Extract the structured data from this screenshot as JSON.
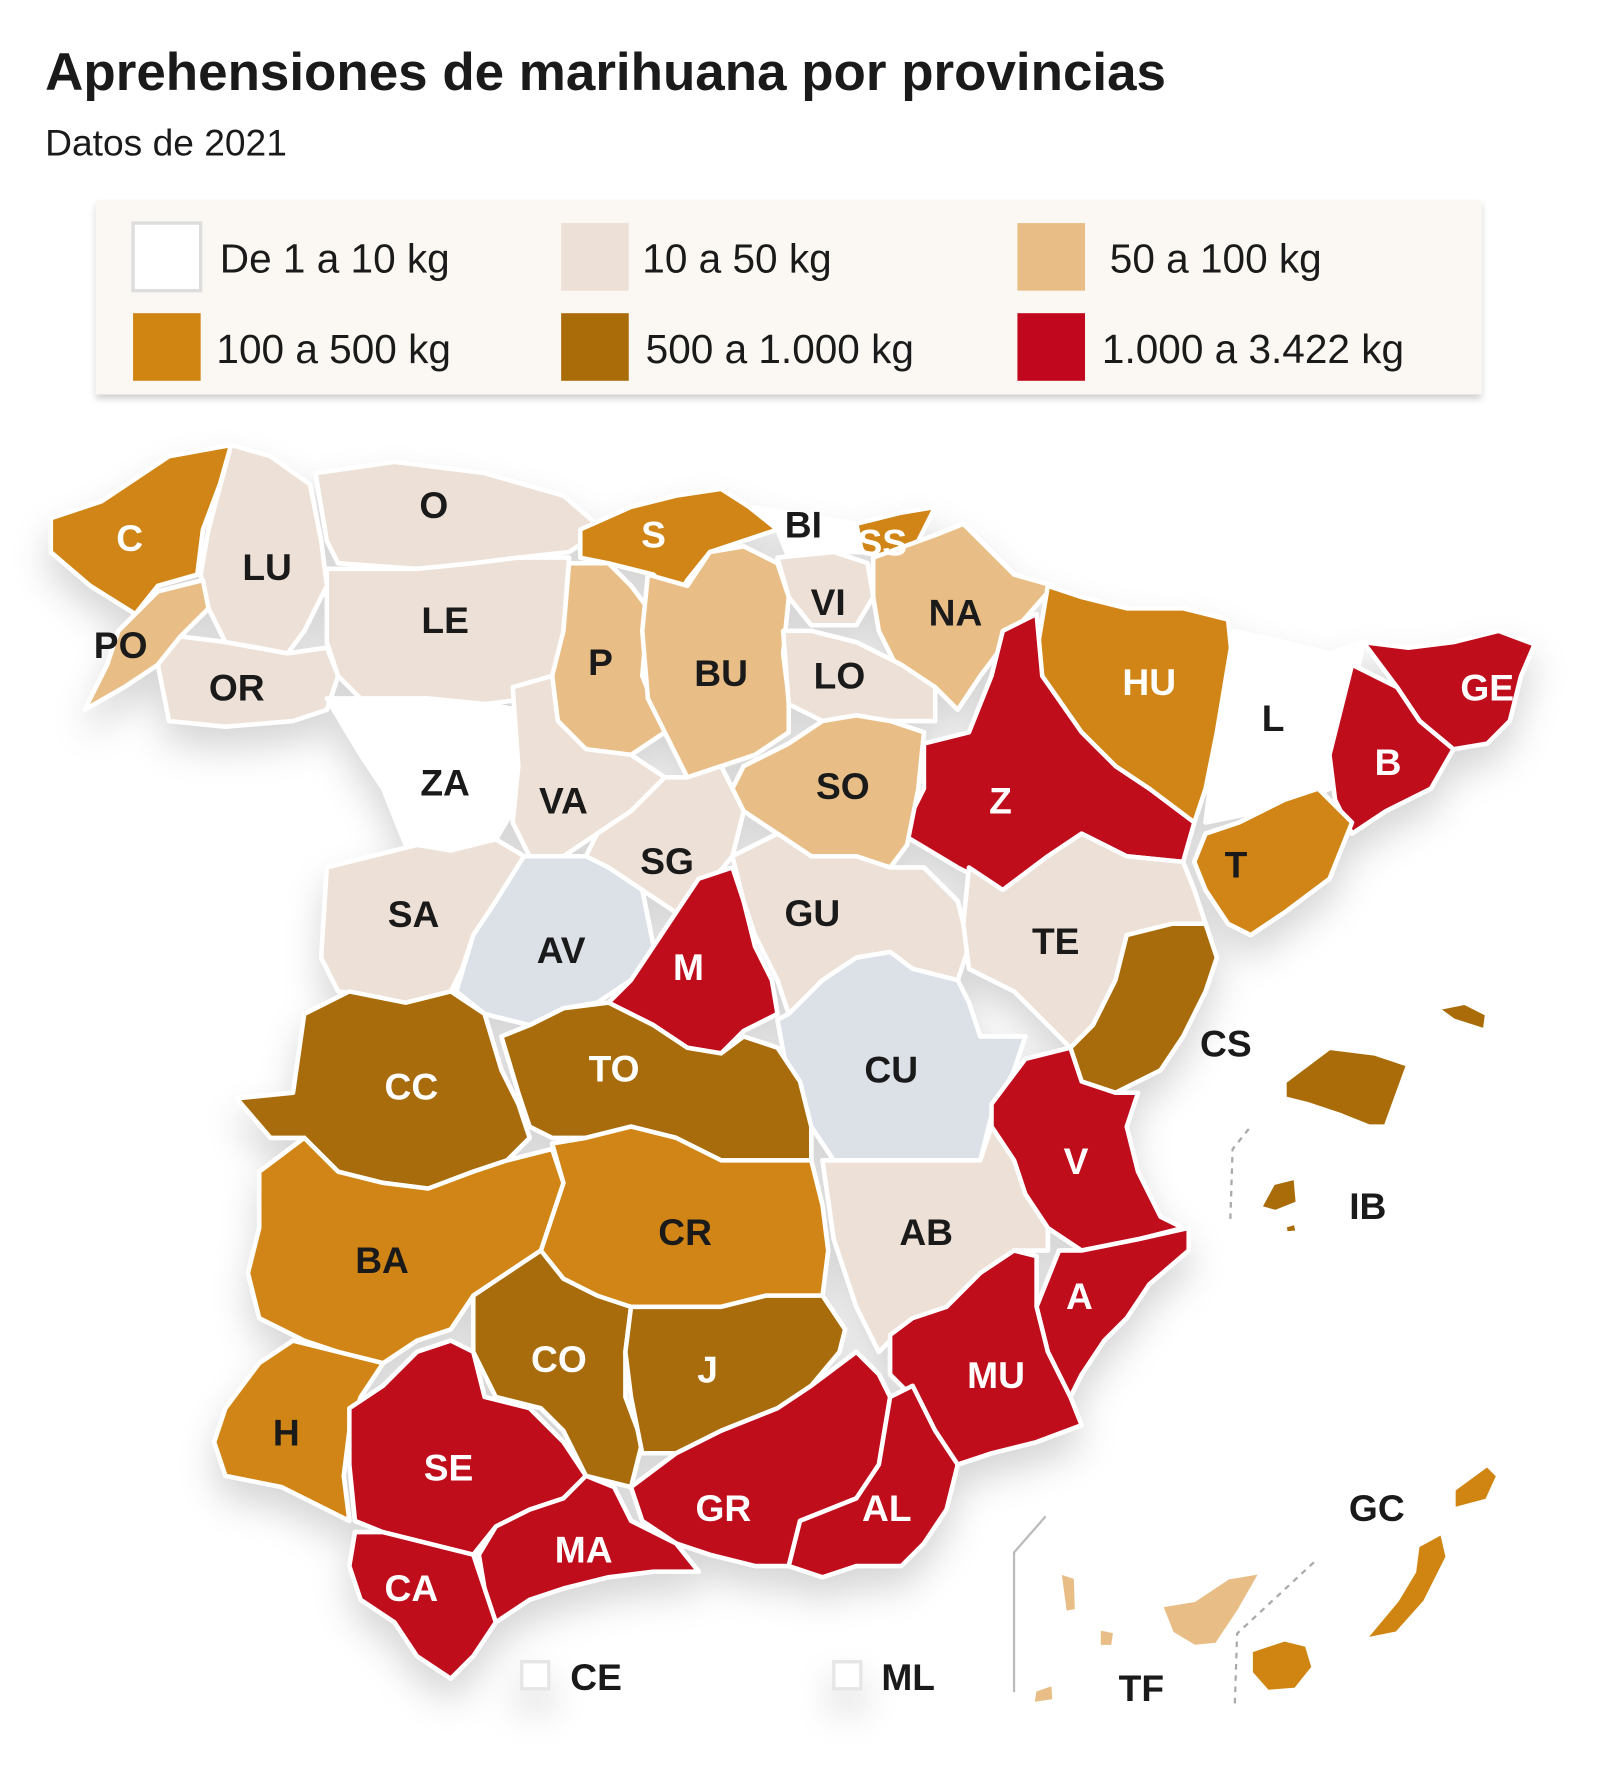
{
  "title": "Aprehensiones de marihuana por provincias",
  "subtitle": "Datos de 2021",
  "legend": [
    {
      "id": "r1",
      "label": "De 1 a 10 kg",
      "color": "#ffffff"
    },
    {
      "id": "r2",
      "label": "10 a 50 kg",
      "color": "#ede0d6"
    },
    {
      "id": "r3",
      "label": "50 a 100 kg",
      "color": "#e8be86"
    },
    {
      "id": "r4",
      "label": "100 a 500 kg",
      "color": "#d08512"
    },
    {
      "id": "r5",
      "label": "500 a 1.000 kg",
      "color": "#a96c08"
    },
    {
      "id": "r6",
      "label": "1.000 a 3.422 kg",
      "color": "#c0071d"
    }
  ],
  "no_data_color": "#dbe1e7",
  "provinces": [
    {
      "code": "C",
      "range": "r4"
    },
    {
      "code": "LU",
      "range": "r2"
    },
    {
      "code": "O",
      "range": "r2"
    },
    {
      "code": "S",
      "range": "r4"
    },
    {
      "code": "BI",
      "range": "r1"
    },
    {
      "code": "SS",
      "range": "r4"
    },
    {
      "code": "VI",
      "range": "r2"
    },
    {
      "code": "NA",
      "range": "r3"
    },
    {
      "code": "PO",
      "range": "r3"
    },
    {
      "code": "OR",
      "range": "r2"
    },
    {
      "code": "LE",
      "range": "r2"
    },
    {
      "code": "P",
      "range": "r3"
    },
    {
      "code": "BU",
      "range": "r3"
    },
    {
      "code": "LO",
      "range": "r2"
    },
    {
      "code": "HU",
      "range": "r4"
    },
    {
      "code": "L",
      "range": "r1"
    },
    {
      "code": "GE",
      "range": "r6"
    },
    {
      "code": "B",
      "range": "r6"
    },
    {
      "code": "Z",
      "range": "r6"
    },
    {
      "code": "T",
      "range": "r4"
    },
    {
      "code": "ZA",
      "range": "r1"
    },
    {
      "code": "VA",
      "range": "r2"
    },
    {
      "code": "SO",
      "range": "r3"
    },
    {
      "code": "SG",
      "range": "r2"
    },
    {
      "code": "SA",
      "range": "r2"
    },
    {
      "code": "AV",
      "range": "none"
    },
    {
      "code": "M",
      "range": "r6"
    },
    {
      "code": "GU",
      "range": "r2"
    },
    {
      "code": "TE",
      "range": "r2"
    },
    {
      "code": "CS",
      "range": "r5"
    },
    {
      "code": "CU",
      "range": "none"
    },
    {
      "code": "V",
      "range": "r6"
    },
    {
      "code": "CC",
      "range": "r5"
    },
    {
      "code": "TO",
      "range": "r5"
    },
    {
      "code": "CR",
      "range": "r4"
    },
    {
      "code": "AB",
      "range": "r2"
    },
    {
      "code": "BA",
      "range": "r4"
    },
    {
      "code": "CO",
      "range": "r5"
    },
    {
      "code": "J",
      "range": "r5"
    },
    {
      "code": "A",
      "range": "r6"
    },
    {
      "code": "MU",
      "range": "r6"
    },
    {
      "code": "H",
      "range": "r4"
    },
    {
      "code": "SE",
      "range": "r6"
    },
    {
      "code": "GR",
      "range": "r6"
    },
    {
      "code": "AL",
      "range": "r6"
    },
    {
      "code": "MA",
      "range": "r6"
    },
    {
      "code": "CA",
      "range": "r6"
    },
    {
      "code": "IB",
      "range": "r5"
    },
    {
      "code": "GC",
      "range": "r4"
    },
    {
      "code": "TF",
      "range": "r3"
    },
    {
      "code": "CE",
      "range": "r1"
    },
    {
      "code": "ML",
      "range": "r1"
    }
  ]
}
